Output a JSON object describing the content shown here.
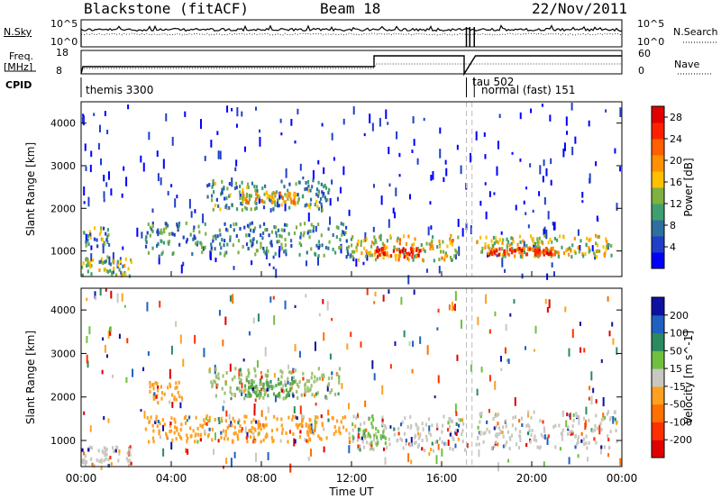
{
  "header": {
    "title": "Blackstone (fitACF)",
    "beam": "Beam 18",
    "date": "22/Nov/2011"
  },
  "top_panels": {
    "nsky_label": "N.Sky",
    "nsearch_label": "N.Search",
    "nsky_ticks": [
      "10^5",
      "10^0"
    ],
    "nsky_right_ticks": [
      "10^5",
      "10^0"
    ],
    "freq_label": "Freq.",
    "freq_unit": "[MHz]",
    "freq_ticks": [
      "18",
      "8"
    ],
    "nave_label": "Nave",
    "nave_ticks": [
      "60",
      "0"
    ],
    "cpid_label": "CPID",
    "cpid_entries": [
      "themis 3300",
      "tau 502",
      "normal (fast) 151"
    ]
  },
  "chart_data": [
    {
      "type": "heatmap",
      "name": "power",
      "ylabel": "Slant Range [km]",
      "xlabel": "Time UT",
      "x_ticks": [
        "00:00",
        "04:00",
        "08:00",
        "12:00",
        "16:00",
        "20:00",
        "00:00"
      ],
      "y_ticks": [
        1000,
        2000,
        3000,
        4000
      ],
      "xlim_hours": [
        0,
        24
      ],
      "ylim": [
        400,
        4500
      ],
      "colorbar": {
        "label": "Power [dB]",
        "ticks": [
          4,
          8,
          12,
          16,
          20,
          24,
          28
        ],
        "range": [
          0,
          30
        ],
        "colors": [
          "#0000ff",
          "#1f3fc8",
          "#2f6fa0",
          "#3f9f70",
          "#7fb040",
          "#ffc000",
          "#ff9000",
          "#ff6000",
          "#ff2000",
          "#e00000"
        ]
      },
      "regions": [
        {
          "t0": 0.0,
          "t1": 2.2,
          "r0": 450,
          "r1": 900,
          "level": 0.45
        },
        {
          "t0": 0.0,
          "t1": 1.2,
          "r0": 1150,
          "r1": 1600,
          "level": 0.35
        },
        {
          "t0": 2.8,
          "t1": 12.0,
          "r0": 900,
          "r1": 1700,
          "level": 0.3
        },
        {
          "t0": 5.5,
          "t1": 11.0,
          "r0": 2000,
          "r1": 2700,
          "level": 0.35
        },
        {
          "t0": 7.0,
          "t1": 9.5,
          "r0": 2150,
          "r1": 2400,
          "level": 0.6
        },
        {
          "t0": 12.0,
          "t1": 16.8,
          "r0": 800,
          "r1": 1400,
          "level": 0.55
        },
        {
          "t0": 13.0,
          "t1": 15.0,
          "r0": 900,
          "r1": 1100,
          "level": 0.85
        },
        {
          "t0": 17.5,
          "t1": 23.5,
          "r0": 900,
          "r1": 1400,
          "level": 0.5
        },
        {
          "t0": 18.0,
          "t1": 21.0,
          "r0": 950,
          "r1": 1100,
          "level": 0.8
        }
      ]
    },
    {
      "type": "heatmap",
      "name": "velocity",
      "ylabel": "Slant Range [km]",
      "xlabel": "Time UT",
      "x_ticks": [
        "00:00",
        "04:00",
        "08:00",
        "12:00",
        "16:00",
        "20:00",
        "00:00"
      ],
      "y_ticks": [
        1000,
        2000,
        3000,
        4000
      ],
      "xlim_hours": [
        0,
        24
      ],
      "ylim": [
        400,
        4500
      ],
      "colorbar": {
        "label": "Velocity [m s^-1]",
        "ticks": [
          "200",
          "100",
          "50",
          "15",
          "-15",
          "-50",
          "-100",
          "-200"
        ],
        "colors": [
          "#1010a0",
          "#2060c0",
          "#2a8a60",
          "#70c040",
          "#c8c8c0",
          "#ffa020",
          "#ff7000",
          "#ff3000",
          "#e00000"
        ]
      },
      "regions": [
        {
          "t0": 0.0,
          "t1": 2.2,
          "r0": 450,
          "r1": 900,
          "color": "#c8c8c0"
        },
        {
          "t0": 3.0,
          "t1": 4.5,
          "r0": 1900,
          "r1": 2400,
          "color": "#ffa020"
        },
        {
          "t0": 5.5,
          "t1": 11.5,
          "r0": 2000,
          "r1": 2700,
          "color": "#9cc070"
        },
        {
          "t0": 7.0,
          "t1": 9.5,
          "r0": 2050,
          "r1": 2450,
          "color": "#5aa850"
        },
        {
          "t0": 2.8,
          "t1": 12.0,
          "r0": 1000,
          "r1": 1600,
          "color": "#ffa020"
        },
        {
          "t0": 12.0,
          "t1": 17.0,
          "r0": 800,
          "r1": 1600,
          "color": "#c8c8c0"
        },
        {
          "t0": 12.0,
          "t1": 13.5,
          "r0": 900,
          "r1": 1600,
          "color": "#70c040"
        },
        {
          "t0": 17.5,
          "t1": 23.8,
          "r0": 850,
          "r1": 1700,
          "color": "#c8c8c0"
        }
      ]
    }
  ]
}
